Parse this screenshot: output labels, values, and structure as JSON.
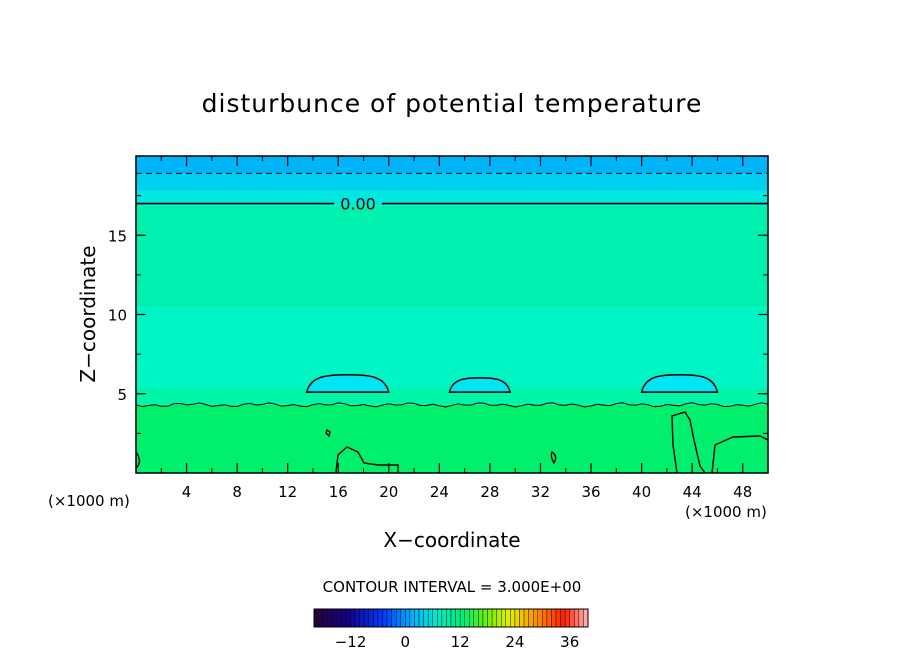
{
  "chart_data": {
    "type": "heatmap",
    "title": "disturbunce of potential temperature",
    "xlabel": "X−coordinate",
    "ylabel": "Z−coordinate",
    "x_unit_left": "(×1000 m)",
    "x_unit_right": "(×1000 m)",
    "xlim": [
      0,
      50
    ],
    "ylim": [
      0,
      20
    ],
    "x_ticks": [
      4,
      8,
      12,
      16,
      20,
      24,
      28,
      32,
      36,
      40,
      44,
      48
    ],
    "y_ticks": [
      5,
      10,
      15
    ],
    "contour_interval_text": "CONTOUR INTERVAL = 3.000E+00",
    "contour_label": "0.00",
    "contour_zero_z": 17.0,
    "dashed_contour_z": 18.9,
    "bands": [
      {
        "z0": 0.0,
        "z1": 4.3,
        "color": "#00f06e"
      },
      {
        "z0": 4.3,
        "z1": 5.3,
        "color": "#00f5a8"
      },
      {
        "z0": 5.3,
        "z1": 10.5,
        "color": "#00f5c4"
      },
      {
        "z0": 10.5,
        "z1": 16.9,
        "color": "#00f0b0"
      },
      {
        "z0": 16.9,
        "z1": 17.8,
        "color": "#00e8e2"
      },
      {
        "z0": 17.8,
        "z1": 18.9,
        "color": "#00d0f0"
      },
      {
        "z0": 18.9,
        "z1": 20.0,
        "color": "#00b4f8"
      }
    ],
    "bubbles": [
      {
        "x_start": 13.5,
        "x_end": 20.0,
        "z_base": 5.1,
        "z_top": 6.2,
        "color": "#00e4f4"
      },
      {
        "x_start": 24.8,
        "x_end": 29.6,
        "z_base": 5.1,
        "z_top": 6.0,
        "color": "#00e4f4"
      },
      {
        "x_start": 40.0,
        "x_end": 46.0,
        "z_base": 5.1,
        "z_top": 6.2,
        "color": "#00e4f4"
      }
    ],
    "colorbar": {
      "ticks": [
        -12,
        0,
        12,
        24,
        36
      ],
      "min": -20,
      "max": 40
    }
  }
}
